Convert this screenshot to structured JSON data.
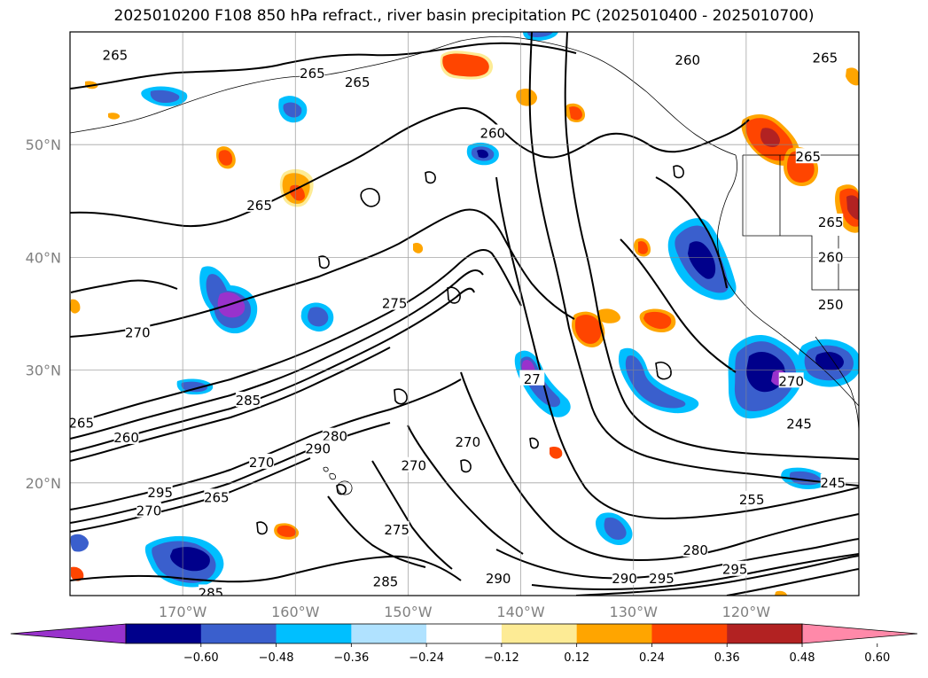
{
  "title": "2025010200 F108 850 hPa refract., river basin precipitation PC (2025010400 - 2025010700)",
  "map": {
    "region": "North-East Pacific and western North America",
    "lon_range": [
      -180,
      -110
    ],
    "lat_range": [
      10,
      60
    ],
    "grid": true,
    "coastlines": true,
    "state_borders": true
  },
  "axes": {
    "lat_ticks": [
      {
        "value": 20,
        "label": "20°N"
      },
      {
        "value": 30,
        "label": "30°N"
      },
      {
        "value": 40,
        "label": "40°N"
      },
      {
        "value": 50,
        "label": "50°N"
      }
    ],
    "lon_ticks": [
      {
        "value": -170,
        "label": "170°W"
      },
      {
        "value": -160,
        "label": "160°W"
      },
      {
        "value": -150,
        "label": "150°W"
      },
      {
        "value": -140,
        "label": "140°W"
      },
      {
        "value": -130,
        "label": "130°W"
      },
      {
        "value": -120,
        "label": "120°W"
      }
    ]
  },
  "contour_labels": [
    {
      "text": "265",
      "lon": -176.0,
      "lat": 57.9
    },
    {
      "text": "265",
      "lon": -158.5,
      "lat": 56.3
    },
    {
      "text": "265",
      "lon": -154.5,
      "lat": 55.5
    },
    {
      "text": "260",
      "lon": -142.5,
      "lat": 51.0
    },
    {
      "text": "260",
      "lon": -125.2,
      "lat": 57.5
    },
    {
      "text": "265",
      "lon": -113.0,
      "lat": 57.7
    },
    {
      "text": "265",
      "lon": -163.2,
      "lat": 44.6
    },
    {
      "text": "265",
      "lon": -114.5,
      "lat": 48.9
    },
    {
      "text": "265",
      "lon": -112.5,
      "lat": 43.1
    },
    {
      "text": "260",
      "lon": -112.5,
      "lat": 40.0
    },
    {
      "text": "250",
      "lon": -112.5,
      "lat": 35.8
    },
    {
      "text": "275",
      "lon": -151.2,
      "lat": 35.9
    },
    {
      "text": "270",
      "lon": -174.0,
      "lat": 33.3
    },
    {
      "text": "285",
      "lon": -164.2,
      "lat": 27.3
    },
    {
      "text": "265",
      "lon": -179.0,
      "lat": 25.3
    },
    {
      "text": "260",
      "lon": -175.0,
      "lat": 24.0
    },
    {
      "text": "280",
      "lon": -156.5,
      "lat": 24.1
    },
    {
      "text": "290",
      "lon": -158.0,
      "lat": 23.0
    },
    {
      "text": "270",
      "lon": -144.7,
      "lat": 23.6
    },
    {
      "text": "270",
      "lon": -163.0,
      "lat": 21.8
    },
    {
      "text": "270",
      "lon": -149.5,
      "lat": 21.5
    },
    {
      "text": "295",
      "lon": -172.0,
      "lat": 19.1
    },
    {
      "text": "265",
      "lon": -167.0,
      "lat": 18.7
    },
    {
      "text": "270",
      "lon": -173.0,
      "lat": 17.5
    },
    {
      "text": "275",
      "lon": -151.0,
      "lat": 15.8
    },
    {
      "text": "255",
      "lon": -119.5,
      "lat": 18.5
    },
    {
      "text": "245",
      "lon": -115.3,
      "lat": 25.2
    },
    {
      "text": "245",
      "lon": -112.3,
      "lat": 20.0
    },
    {
      "text": "280",
      "lon": -124.5,
      "lat": 14.0
    },
    {
      "text": "295",
      "lon": -121.0,
      "lat": 12.3
    },
    {
      "text": "285",
      "lon": -152.0,
      "lat": 11.2
    },
    {
      "text": "290",
      "lon": -142.0,
      "lat": 11.5
    },
    {
      "text": "290",
      "lon": -130.8,
      "lat": 11.5
    },
    {
      "text": "295",
      "lon": -127.5,
      "lat": 11.5
    },
    {
      "text": "285",
      "lon": -167.5,
      "lat": 10.2
    },
    {
      "text": "27",
      "lon": -139.0,
      "lat": 29.2
    },
    {
      "text": "270",
      "lon": -116.0,
      "lat": 29.0
    }
  ],
  "colorbar": {
    "colors": [
      "#9932cc",
      "#00008b",
      "#3a5fcd",
      "#00bfff",
      "#b0e2ff",
      "#ffffff",
      "#fdeb95",
      "#ffa500",
      "#ff4500",
      "#b22222",
      "#ff89a9"
    ],
    "tick_labels": [
      "−0.60",
      "−0.48",
      "−0.36",
      "−0.24",
      "−0.12",
      "0.12",
      "0.24",
      "0.36",
      "0.48",
      "0.60"
    ],
    "extend": "both"
  },
  "fill_colors": {
    "neg_extreme": "#9932cc",
    "neg_strong": "#00008b",
    "neg_mod": "#3a5fcd",
    "neg_weak": "#00bfff",
    "neg_faint": "#b0e2ff",
    "pos_faint": "#fdeb95",
    "pos_weak": "#ffa500",
    "pos_mod": "#ff4500",
    "pos_strong": "#b22222",
    "pos_extreme": "#ff89a9"
  }
}
